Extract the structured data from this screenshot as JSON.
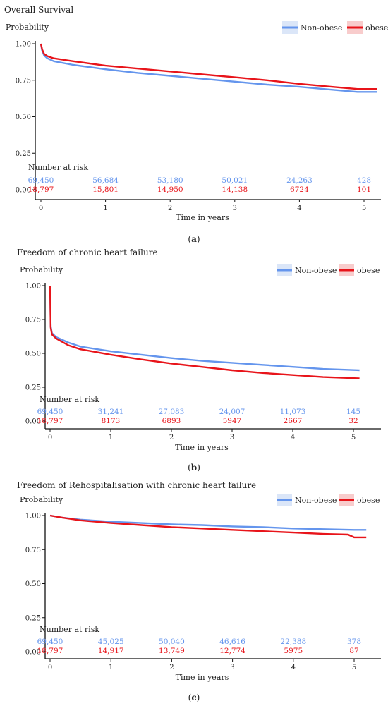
{
  "colors": {
    "non_obese": "#6495ED",
    "obese": "#E8141A",
    "non_obese_bg": "#dbe6f8",
    "obese_bg": "#f8cccc"
  },
  "chart_data": [
    {
      "type": "line",
      "title": "Overall Survival",
      "ylabel": "Probability",
      "xlabel": "Time in years",
      "caption": "a",
      "xlim": [
        0,
        5.2
      ],
      "ylim": [
        0,
        1
      ],
      "xticks": [
        "0",
        "1",
        "2",
        "3",
        "4",
        "5"
      ],
      "yticks": [
        "0.00",
        "0.25",
        "0.50",
        "0.75",
        "1.00"
      ],
      "legend": [
        "Non-obese",
        "obese"
      ],
      "legend_position": "top-right",
      "series": [
        {
          "name": "Non-obese",
          "x": [
            0,
            0.02,
            0.05,
            0.1,
            0.2,
            0.5,
            1,
            1.5,
            2,
            2.5,
            3,
            3.5,
            4,
            4.5,
            4.9,
            5.2
          ],
          "y": [
            1.0,
            0.95,
            0.92,
            0.9,
            0.88,
            0.855,
            0.825,
            0.8,
            0.78,
            0.76,
            0.74,
            0.72,
            0.705,
            0.685,
            0.67,
            0.67
          ]
        },
        {
          "name": "obese",
          "x": [
            0,
            0.02,
            0.05,
            0.1,
            0.2,
            0.5,
            1,
            1.5,
            2,
            2.5,
            3,
            3.5,
            4,
            4.5,
            4.9,
            5.2
          ],
          "y": [
            1.0,
            0.96,
            0.93,
            0.915,
            0.9,
            0.88,
            0.85,
            0.83,
            0.81,
            0.79,
            0.77,
            0.75,
            0.725,
            0.705,
            0.69,
            0.69
          ]
        }
      ],
      "risk_label": "Number at risk",
      "risk_table": [
        {
          "name": "Non-obese",
          "values": [
            "69,450",
            "56,684",
            "53,180",
            "50,021",
            "24,263",
            "428"
          ]
        },
        {
          "name": "obese",
          "values": [
            "18,797",
            "15,801",
            "14,950",
            "14,138",
            "6724",
            "101"
          ]
        }
      ]
    },
    {
      "type": "line",
      "title": "Freedom of chronic heart failure",
      "ylabel": "Probability",
      "xlabel": "Time in years",
      "caption": "b",
      "xlim": [
        0,
        5.2
      ],
      "ylim": [
        0,
        1
      ],
      "xticks": [
        "0",
        "1",
        "2",
        "3",
        "4",
        "5"
      ],
      "yticks": [
        "0.00",
        "0.25",
        "0.50",
        "0.75",
        "1.00"
      ],
      "legend": [
        "Non-obese",
        "obese"
      ],
      "legend_position": "top-right",
      "series": [
        {
          "name": "Non-obese",
          "x": [
            0,
            0.01,
            0.03,
            0.1,
            0.3,
            0.5,
            1,
            1.5,
            2,
            2.5,
            3,
            3.5,
            4,
            4.5,
            5.1
          ],
          "y": [
            1.0,
            0.7,
            0.65,
            0.62,
            0.58,
            0.55,
            0.515,
            0.49,
            0.465,
            0.445,
            0.43,
            0.415,
            0.4,
            0.385,
            0.375
          ]
        },
        {
          "name": "obese",
          "x": [
            0,
            0.01,
            0.03,
            0.1,
            0.3,
            0.5,
            1,
            1.5,
            2,
            2.5,
            3,
            3.5,
            4,
            4.5,
            5.1
          ],
          "y": [
            1.0,
            0.69,
            0.64,
            0.61,
            0.56,
            0.53,
            0.49,
            0.455,
            0.425,
            0.4,
            0.375,
            0.355,
            0.34,
            0.325,
            0.315
          ]
        }
      ],
      "risk_label": "Number at risk",
      "risk_table": [
        {
          "name": "Non-obese",
          "values": [
            "69,450",
            "31,241",
            "27,083",
            "24,007",
            "11,073",
            "145"
          ]
        },
        {
          "name": "obese",
          "values": [
            "18,797",
            "8173",
            "6893",
            "5947",
            "2667",
            "32"
          ]
        }
      ]
    },
    {
      "type": "line",
      "title": "Freedom of Rehospitalisation with chronic heart failure",
      "ylabel": "Probability",
      "xlabel": "Time in years",
      "caption": "c",
      "xlim": [
        0,
        5.2
      ],
      "ylim": [
        0,
        1
      ],
      "xticks": [
        "0",
        "1",
        "2",
        "3",
        "4",
        "5"
      ],
      "yticks": [
        "0.00",
        "0.25",
        "0.50",
        "0.75",
        "1.00"
      ],
      "legend": [
        "Non-obese",
        "obese"
      ],
      "legend_position": "top-right",
      "series": [
        {
          "name": "Non-obese",
          "x": [
            0,
            0.2,
            0.5,
            1,
            1.5,
            2,
            2.5,
            3,
            3.5,
            4,
            4.5,
            5,
            5.2
          ],
          "y": [
            1.0,
            0.985,
            0.97,
            0.955,
            0.945,
            0.935,
            0.93,
            0.92,
            0.915,
            0.905,
            0.9,
            0.895,
            0.895
          ]
        },
        {
          "name": "obese",
          "x": [
            0,
            0.2,
            0.5,
            1,
            1.5,
            2,
            2.5,
            3,
            3.5,
            4,
            4.5,
            4.9,
            5.0,
            5.2
          ],
          "y": [
            1.0,
            0.985,
            0.965,
            0.945,
            0.93,
            0.915,
            0.905,
            0.895,
            0.885,
            0.875,
            0.865,
            0.86,
            0.84,
            0.84
          ]
        }
      ],
      "risk_label": "Number at risk",
      "risk_table": [
        {
          "name": "Non-obese",
          "values": [
            "69,450",
            "45,025",
            "50,040",
            "46,616",
            "22,388",
            "378"
          ]
        },
        {
          "name": "obese",
          "values": [
            "18,797",
            "14,917",
            "13,749",
            "12,774",
            "5975",
            "87"
          ]
        }
      ]
    }
  ]
}
